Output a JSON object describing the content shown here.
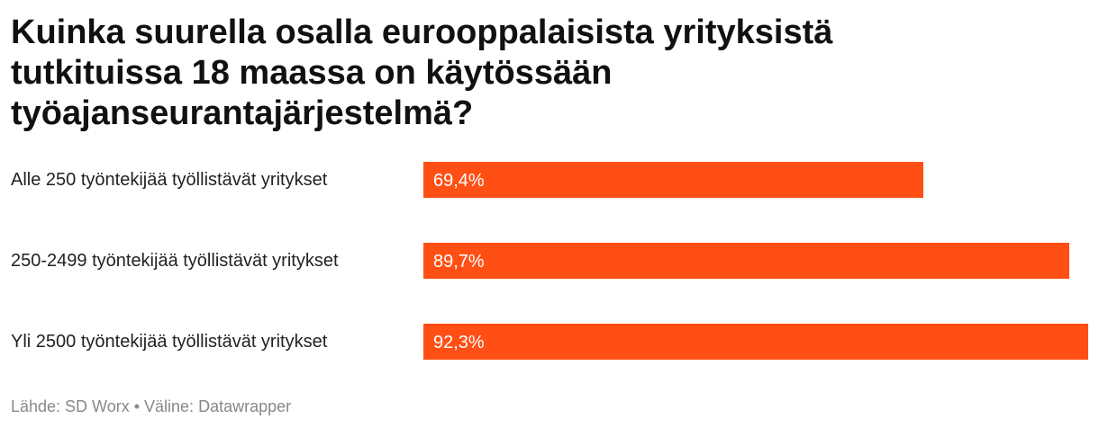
{
  "chart_data": {
    "type": "bar",
    "orientation": "horizontal",
    "title": "Kuinka suurella osalla eurooppalaisista yrityksistä tutkituissa 18 maassa on käytössään työajanseurantajärjestelmä?",
    "categories": [
      "Alle 250 työntekijää työllistävät yritykset",
      "250-2499 työntekijää työllistävät yritykset",
      "Yli 2500 työntekijää työllistävät yritykset"
    ],
    "values": [
      69.4,
      89.7,
      92.3
    ],
    "value_labels": [
      "69,4%",
      "89,7%",
      "92,3%"
    ],
    "unit": "%",
    "xlim": [
      0,
      92.3
    ],
    "bar_color": "#ff4f14",
    "grid": false
  },
  "footer": {
    "text": "Lähde: SD Worx • Väline: Datawrapper"
  }
}
